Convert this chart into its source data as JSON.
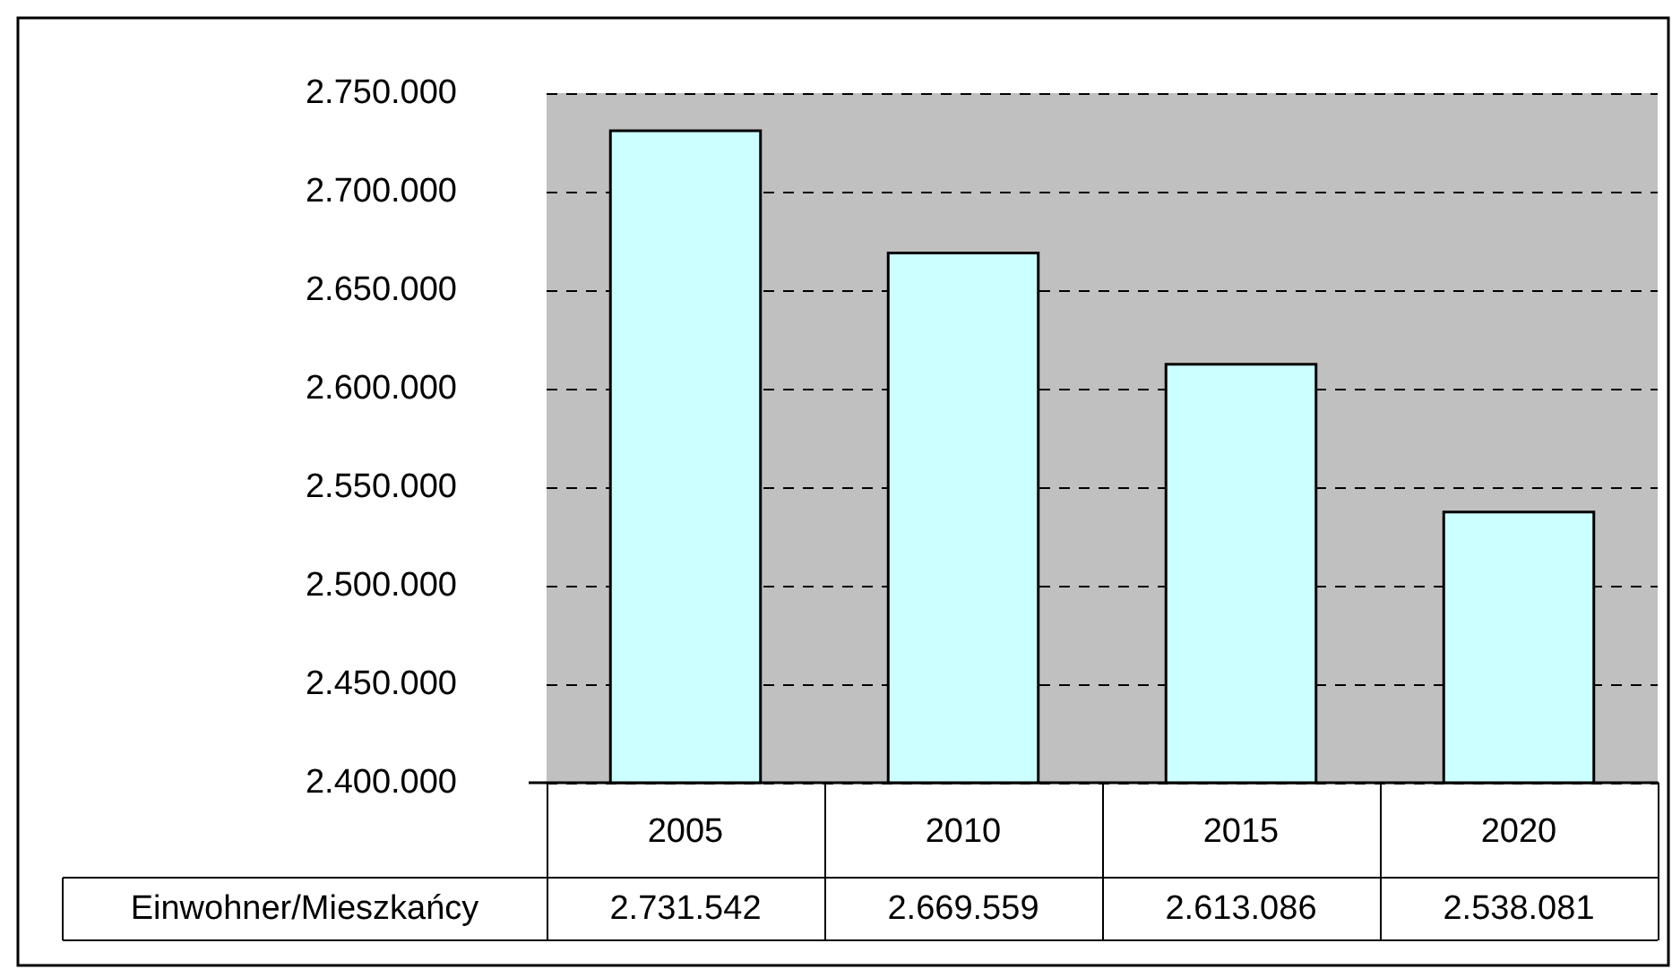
{
  "chart_data": {
    "type": "bar",
    "categories": [
      "2005",
      "2010",
      "2015",
      "2020"
    ],
    "series": [
      {
        "name": "Einwohner/Mieszkańcy",
        "color": "#ccffff",
        "values": [
          2731542,
          2669559,
          2613086,
          2538081
        ],
        "value_labels": [
          "2.731.542",
          "2.669.559",
          "2.613.086",
          "2.538.081"
        ]
      }
    ],
    "ylim": [
      2400000,
      2750000
    ],
    "yticks": [
      {
        "value": 2400000,
        "label": "2.400.000"
      },
      {
        "value": 2450000,
        "label": "2.450.000"
      },
      {
        "value": 2500000,
        "label": "2.500.000"
      },
      {
        "value": 2550000,
        "label": "2.550.000"
      },
      {
        "value": 2600000,
        "label": "2.600.000"
      },
      {
        "value": 2650000,
        "label": "2.650.000"
      },
      {
        "value": 2700000,
        "label": "2.700.000"
      },
      {
        "value": 2750000,
        "label": "2.750.000"
      }
    ],
    "grid": "y",
    "legend": "bottom left"
  }
}
